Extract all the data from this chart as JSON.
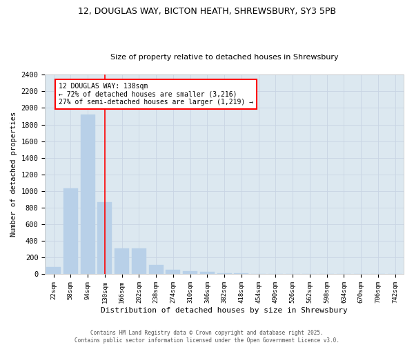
{
  "title_line1": "12, DOUGLAS WAY, BICTON HEATH, SHREWSBURY, SY3 5PB",
  "title_line2": "Size of property relative to detached houses in Shrewsbury",
  "xlabel": "Distribution of detached houses by size in Shrewsbury",
  "ylabel": "Number of detached properties",
  "categories": [
    "22sqm",
    "58sqm",
    "94sqm",
    "130sqm",
    "166sqm",
    "202sqm",
    "238sqm",
    "274sqm",
    "310sqm",
    "346sqm",
    "382sqm",
    "418sqm",
    "454sqm",
    "490sqm",
    "526sqm",
    "562sqm",
    "598sqm",
    "634sqm",
    "670sqm",
    "706sqm",
    "742sqm"
  ],
  "values": [
    85,
    1030,
    1920,
    870,
    310,
    310,
    110,
    50,
    40,
    25,
    15,
    10,
    5,
    5,
    2,
    2,
    1,
    1,
    0,
    0,
    0
  ],
  "bar_color": "#b8d0e8",
  "bar_edgecolor": "#b8d0e8",
  "vline_x": 3,
  "vline_color": "red",
  "annotation_title": "12 DOUGLAS WAY: 138sqm",
  "annotation_line1": "← 72% of detached houses are smaller (3,216)",
  "annotation_line2": "27% of semi-detached houses are larger (1,219) →",
  "annotation_box_facecolor": "white",
  "annotation_box_edgecolor": "red",
  "ylim": [
    0,
    2400
  ],
  "yticks": [
    0,
    200,
    400,
    600,
    800,
    1000,
    1200,
    1400,
    1600,
    1800,
    2000,
    2200,
    2400
  ],
  "grid_color": "#c8d4e4",
  "background_color": "#dce8f0",
  "footnote_line1": "Contains HM Land Registry data © Crown copyright and database right 2025.",
  "footnote_line2": "Contains public sector information licensed under the Open Government Licence v3.0."
}
